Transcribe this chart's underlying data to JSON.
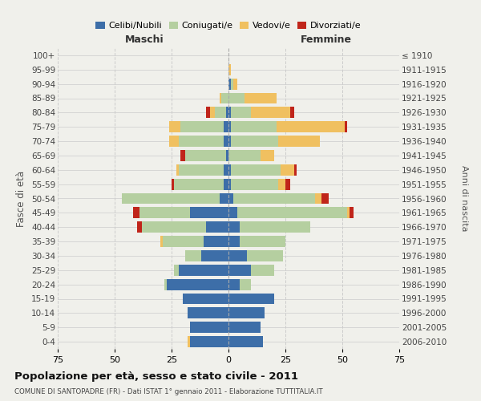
{
  "age_groups": [
    "0-4",
    "5-9",
    "10-14",
    "15-19",
    "20-24",
    "25-29",
    "30-34",
    "35-39",
    "40-44",
    "45-49",
    "50-54",
    "55-59",
    "60-64",
    "65-69",
    "70-74",
    "75-79",
    "80-84",
    "85-89",
    "90-94",
    "95-99",
    "100+"
  ],
  "birth_years": [
    "2006-2010",
    "2001-2005",
    "1996-2000",
    "1991-1995",
    "1986-1990",
    "1981-1985",
    "1976-1980",
    "1971-1975",
    "1966-1970",
    "1961-1965",
    "1956-1960",
    "1951-1955",
    "1946-1950",
    "1941-1945",
    "1936-1940",
    "1931-1935",
    "1926-1930",
    "1921-1925",
    "1916-1920",
    "1911-1915",
    "≤ 1910"
  ],
  "maschi": {
    "celibi": [
      17,
      17,
      18,
      20,
      27,
      22,
      12,
      11,
      10,
      17,
      4,
      2,
      2,
      1,
      2,
      2,
      1,
      0,
      0,
      0,
      0
    ],
    "coniugati": [
      0,
      0,
      0,
      0,
      1,
      2,
      7,
      18,
      28,
      22,
      43,
      22,
      20,
      18,
      20,
      19,
      5,
      3,
      0,
      0,
      0
    ],
    "vedovi": [
      1,
      0,
      0,
      0,
      0,
      0,
      0,
      1,
      0,
      0,
      0,
      0,
      1,
      0,
      4,
      5,
      2,
      1,
      0,
      0,
      0
    ],
    "divorziati": [
      0,
      0,
      0,
      0,
      0,
      0,
      0,
      0,
      2,
      3,
      0,
      1,
      0,
      2,
      0,
      0,
      2,
      0,
      0,
      0,
      0
    ]
  },
  "femmine": {
    "nubili": [
      15,
      14,
      16,
      20,
      5,
      10,
      8,
      5,
      5,
      4,
      2,
      1,
      1,
      0,
      1,
      1,
      1,
      0,
      1,
      0,
      0
    ],
    "coniugate": [
      0,
      0,
      0,
      0,
      5,
      10,
      16,
      20,
      31,
      48,
      36,
      21,
      22,
      14,
      21,
      20,
      9,
      7,
      1,
      0,
      0
    ],
    "vedove": [
      0,
      0,
      0,
      0,
      0,
      0,
      0,
      0,
      0,
      1,
      3,
      3,
      6,
      6,
      18,
      30,
      17,
      14,
      2,
      1,
      0
    ],
    "divorziate": [
      0,
      0,
      0,
      0,
      0,
      0,
      0,
      0,
      0,
      2,
      3,
      2,
      1,
      0,
      0,
      1,
      2,
      0,
      0,
      0,
      0
    ]
  },
  "colors": {
    "celibi": "#3d6ea8",
    "coniugati": "#b5cfa0",
    "vedovi": "#f0c060",
    "divorziati": "#c0251a"
  },
  "xlim": 75,
  "title": "Popolazione per età, sesso e stato civile - 2011",
  "subtitle": "COMUNE DI SANTOPADRE (FR) - Dati ISTAT 1° gennaio 2011 - Elaborazione TUTTITALIA.IT",
  "ylabel": "Fasce di età",
  "ylabel_right": "Anni di nascita",
  "xlabel_left": "Maschi",
  "xlabel_right": "Femmine",
  "background_color": "#f0f0eb",
  "grid_color": "#cccccc"
}
